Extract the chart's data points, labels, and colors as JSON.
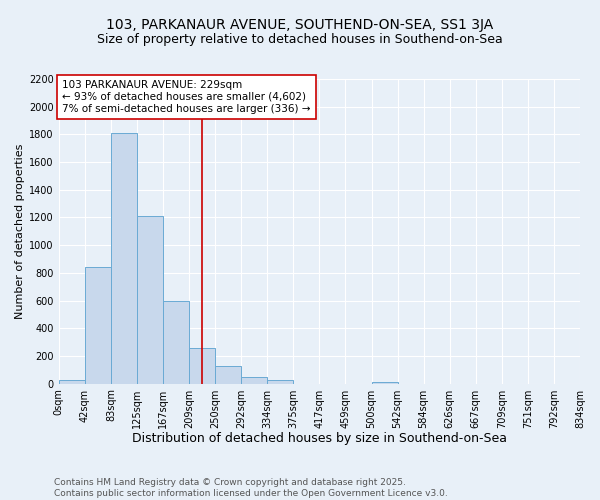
{
  "title": "103, PARKANAUR AVENUE, SOUTHEND-ON-SEA, SS1 3JA",
  "subtitle": "Size of property relative to detached houses in Southend-on-Sea",
  "xlabel": "Distribution of detached houses by size in Southend-on-Sea",
  "ylabel": "Number of detached properties",
  "bar_values": [
    25,
    840,
    1810,
    1210,
    600,
    255,
    130,
    50,
    25,
    0,
    0,
    0,
    15,
    0,
    0,
    0,
    0,
    0,
    0,
    0
  ],
  "bin_edges": [
    0,
    41.7,
    83.4,
    125.1,
    166.8,
    208.5,
    250.2,
    291.9,
    333.6,
    375.3,
    417.0,
    458.7,
    500.4,
    542.1,
    583.8,
    625.5,
    667.2,
    708.9,
    750.6,
    792.3,
    834.0
  ],
  "x_tick_labels": [
    "0sqm",
    "42sqm",
    "83sqm",
    "125sqm",
    "167sqm",
    "209sqm",
    "250sqm",
    "292sqm",
    "334sqm",
    "375sqm",
    "417sqm",
    "459sqm",
    "500sqm",
    "542sqm",
    "584sqm",
    "626sqm",
    "667sqm",
    "709sqm",
    "751sqm",
    "792sqm",
    "834sqm"
  ],
  "bar_color": "#c8d8ec",
  "bar_edge_color": "#6aaad4",
  "property_size": 229,
  "property_line_color": "#cc0000",
  "ylim": [
    0,
    2200
  ],
  "yticks": [
    0,
    200,
    400,
    600,
    800,
    1000,
    1200,
    1400,
    1600,
    1800,
    2000,
    2200
  ],
  "annotation_text": "103 PARKANAUR AVENUE: 229sqm\n← 93% of detached houses are smaller (4,602)\n7% of semi-detached houses are larger (336) →",
  "annotation_box_color": "#ffffff",
  "annotation_box_edge_color": "#cc0000",
  "footnote": "Contains HM Land Registry data © Crown copyright and database right 2025.\nContains public sector information licensed under the Open Government Licence v3.0.",
  "background_color": "#e8f0f8",
  "grid_color": "#ffffff",
  "title_fontsize": 10,
  "subtitle_fontsize": 9,
  "xlabel_fontsize": 9,
  "ylabel_fontsize": 8,
  "tick_fontsize": 7,
  "annotation_fontsize": 7.5,
  "footnote_fontsize": 6.5
}
